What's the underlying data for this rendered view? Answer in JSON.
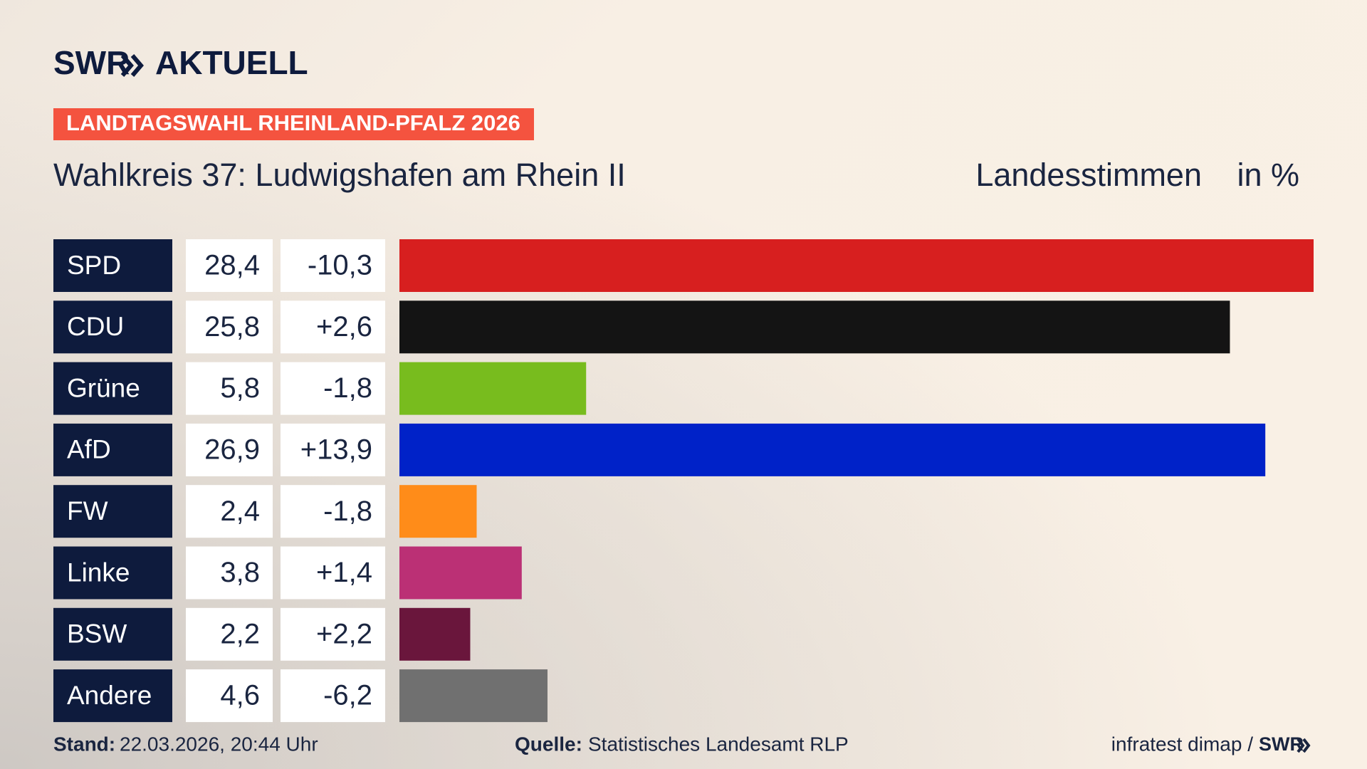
{
  "chart_data": {
    "type": "bar",
    "brand": "SWR",
    "brand_suffix": "AKTUELL",
    "kicker": "LANDTAGSWAHL RHEINLAND-PFALZ 2026",
    "title": "Wahlkreis 37: Ludwigshafen am Rhein II",
    "measure": "Landesstimmen",
    "unit": "in %",
    "categories": [
      "SPD",
      "CDU",
      "Grüne",
      "AfD",
      "FW",
      "Linke",
      "BSW",
      "Andere"
    ],
    "values": [
      28.4,
      25.8,
      5.8,
      26.9,
      2.4,
      3.8,
      2.2,
      4.6
    ],
    "value_labels": [
      "28,4",
      "25,8",
      "5,8",
      "26,9",
      "2,4",
      "3,8",
      "2,2",
      "4,6"
    ],
    "changes": [
      -10.3,
      2.6,
      -1.8,
      13.9,
      -1.8,
      1.4,
      2.2,
      -6.2
    ],
    "change_labels": [
      "-10,3",
      "+2,6",
      "-1,8",
      "+13,9",
      "-1,8",
      "+1,4",
      "+2,2",
      "-6,2"
    ],
    "colors": [
      "#d71f1f",
      "#141414",
      "#78bc1e",
      "#0022c8",
      "#ff8c19",
      "#bb3075",
      "#6a163c",
      "#707070"
    ],
    "stand_label": "Stand:",
    "stand": "22.03.2026, 20:44 Uhr",
    "source_label": "Quelle:",
    "source": "Statistisches Landesamt RLP",
    "credit": "infratest dimap /",
    "credit_brand": "SWR"
  }
}
